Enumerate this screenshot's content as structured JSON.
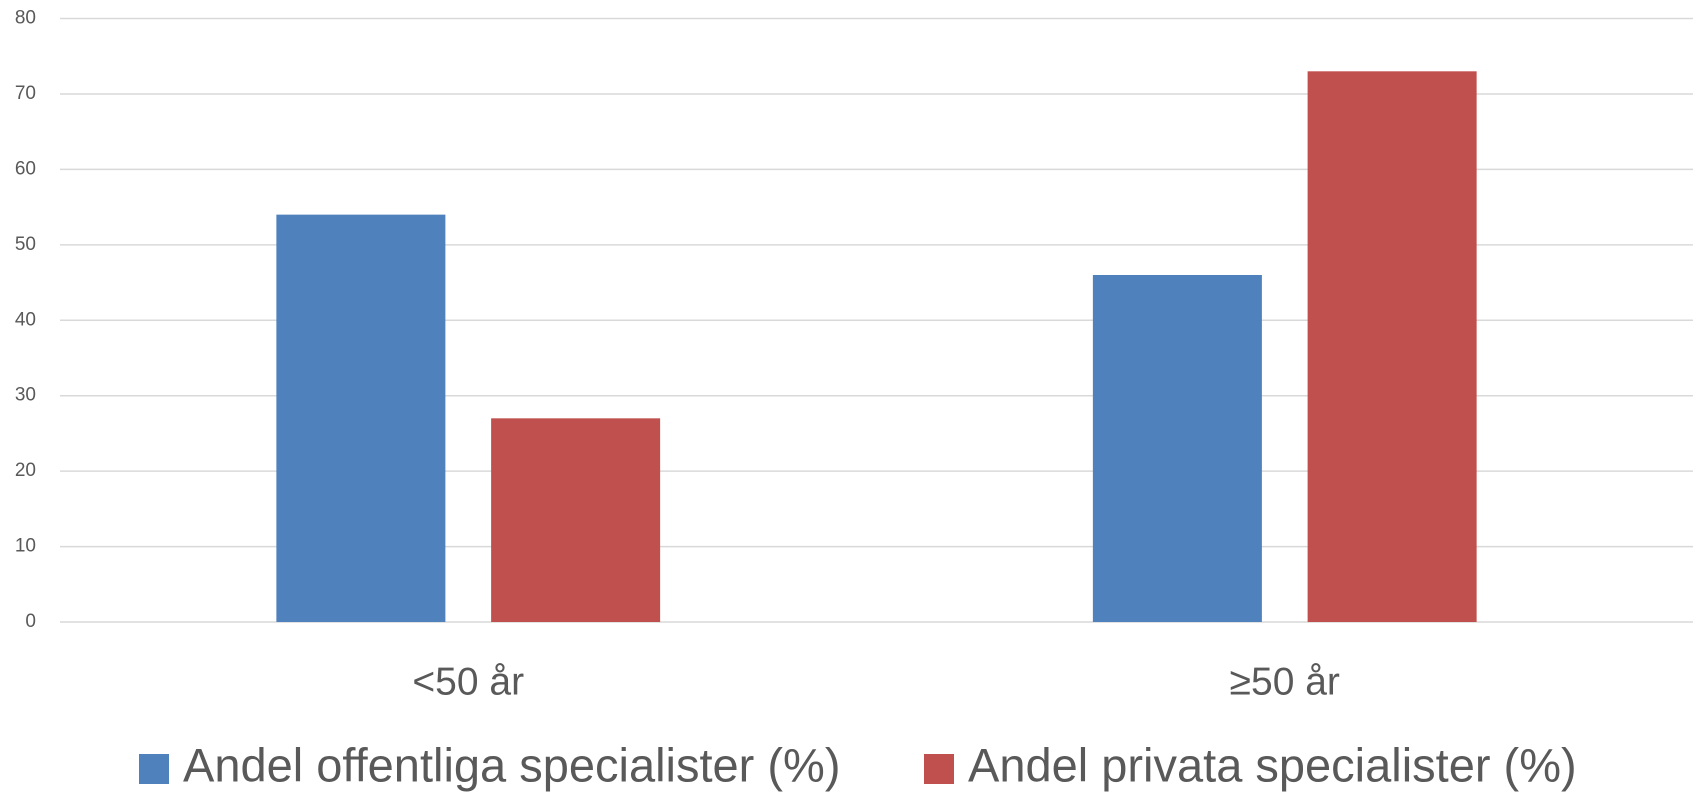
{
  "chart_data": {
    "type": "bar",
    "categories": [
      "<50 år",
      "≥50 år"
    ],
    "series": [
      {
        "name": "Andel offentliga specialister (%)",
        "color": "#4f81bd",
        "values": [
          54,
          46
        ]
      },
      {
        "name": "Andel privata specialister (%)",
        "color": "#c0504d",
        "values": [
          27,
          73
        ]
      }
    ],
    "ylim": [
      0,
      80
    ],
    "yticks": [
      0,
      10,
      20,
      30,
      40,
      50,
      60,
      70,
      80
    ],
    "grid": true,
    "legend": "bottom"
  }
}
